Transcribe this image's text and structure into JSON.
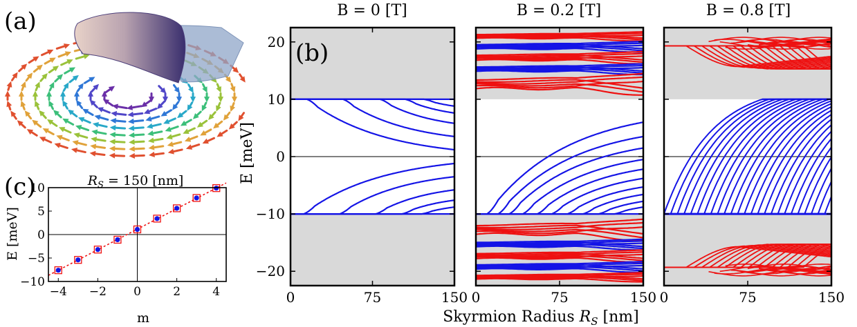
{
  "panel_labels": {
    "a": "(a)",
    "b": "(b)",
    "c": "(c)"
  },
  "colors": {
    "blue": "#1414e6",
    "red": "#ee1111",
    "gap_shade": "#d9d9d9",
    "skirt": "#8fa6c8",
    "dome_dark": "#3a2f6e",
    "dome_light": "#e8d2c8"
  },
  "chart_data": [
    {
      "id": "b1",
      "type": "line",
      "title": "B = 0 [T]",
      "ylabel": "E [meV]",
      "xlim": [
        0,
        150
      ],
      "ylim": [
        -22.5,
        22.5
      ],
      "x_ticks": [
        0,
        75,
        150
      ],
      "y_ticks": [
        -20,
        -10,
        0,
        10,
        20
      ],
      "shaded_ranges": [
        [
          10,
          22.5
        ],
        [
          -22.5,
          -10
        ]
      ],
      "series": [
        {
          "color": "blue",
          "kind": "edge",
          "y": 10
        },
        {
          "color": "blue",
          "kind": "edge",
          "y": -10
        },
        {
          "color": "blue",
          "kind": "down",
          "x0": 15,
          "yend": 1.2
        },
        {
          "color": "blue",
          "kind": "down",
          "x0": 48,
          "yend": 3.5
        },
        {
          "color": "blue",
          "kind": "down",
          "x0": 82,
          "yend": 5.8
        },
        {
          "color": "blue",
          "kind": "down",
          "x0": 105,
          "yend": 7.6
        },
        {
          "color": "blue",
          "kind": "down",
          "x0": 122,
          "yend": 8.8
        },
        {
          "color": "blue",
          "kind": "up",
          "x0": 12,
          "yend": -1.2
        },
        {
          "color": "blue",
          "kind": "up",
          "x0": 45,
          "yend": -3.5
        },
        {
          "color": "blue",
          "kind": "up",
          "x0": 78,
          "yend": -5.8
        },
        {
          "color": "blue",
          "kind": "up",
          "x0": 102,
          "yend": -7.6
        },
        {
          "color": "blue",
          "kind": "up",
          "x0": 120,
          "yend": -8.8
        }
      ]
    },
    {
      "id": "b2",
      "type": "line",
      "title": "B = 0.2 [T]",
      "xlim": [
        0,
        150
      ],
      "ylim": [
        -22.5,
        22.5
      ],
      "x_ticks": [
        0,
        75,
        150
      ],
      "y_ticks": [
        -20,
        -10,
        0,
        10,
        20
      ],
      "shaded_ranges": [
        [
          10,
          22.5
        ],
        [
          -22.5,
          -10
        ]
      ],
      "series": [
        {
          "color": "blue",
          "kind": "edge",
          "y": -10
        },
        {
          "color": "blue",
          "kind": "up",
          "x0": 10,
          "yend": 6
        },
        {
          "color": "blue",
          "kind": "up",
          "x0": 20,
          "yend": 3.5
        },
        {
          "color": "blue",
          "kind": "up",
          "x0": 30,
          "yend": 1.5
        },
        {
          "color": "blue",
          "kind": "up",
          "x0": 42,
          "yend": -0.5
        },
        {
          "color": "blue",
          "kind": "up",
          "x0": 55,
          "yend": -2.2
        },
        {
          "color": "blue",
          "kind": "up",
          "x0": 68,
          "yend": -3.8
        },
        {
          "color": "blue",
          "kind": "up",
          "x0": 82,
          "yend": -5.3
        },
        {
          "color": "blue",
          "kind": "up",
          "x0": 96,
          "yend": -6.6
        },
        {
          "color": "blue",
          "kind": "up",
          "x0": 110,
          "yend": -7.8
        },
        {
          "color": "blue",
          "kind": "up",
          "x0": 124,
          "yend": -8.8
        }
      ],
      "landau_bands": [
        {
          "color": "red",
          "center": 21,
          "spread": 0.6
        },
        {
          "color": "blue",
          "center": 19.2,
          "spread": 0.7
        },
        {
          "color": "red",
          "center": 17.3,
          "spread": 0.8
        },
        {
          "color": "blue",
          "center": 15.3,
          "spread": 0.7
        },
        {
          "color": "red",
          "center": 12.7,
          "spread": 1.4
        },
        {
          "color": "red",
          "center": -12.7,
          "spread": 1.4
        },
        {
          "color": "blue",
          "center": -15.3,
          "spread": 0.7
        },
        {
          "color": "red",
          "center": -17.3,
          "spread": 0.8
        },
        {
          "color": "blue",
          "center": -19.2,
          "spread": 0.7
        },
        {
          "color": "red",
          "center": -21,
          "spread": 0.6
        }
      ]
    },
    {
      "id": "b3",
      "type": "line",
      "title": "B = 0.8 [T]",
      "xlim": [
        0,
        150
      ],
      "ylim": [
        -22.5,
        22.5
      ],
      "x_ticks": [
        0,
        75,
        150
      ],
      "y_ticks": [
        -20,
        -10,
        0,
        10,
        20
      ],
      "shaded_ranges": [
        [
          10,
          22.5
        ],
        [
          -22.5,
          -10
        ]
      ],
      "up_series_start": 0,
      "up_series_step": 6,
      "up_series_count": 25,
      "red_top_count": 16,
      "red_bottom_count": 16
    },
    {
      "id": "c",
      "type": "scatter",
      "title_prefix": "R",
      "title_sub": "S",
      "title_rest": " = 150 [nm]",
      "xlabel": "m",
      "ylabel": "E [meV]",
      "xlim": [
        -4.5,
        4.5
      ],
      "ylim": [
        -10,
        10
      ],
      "x_ticks": [
        -4,
        -2,
        0,
        2,
        4
      ],
      "y_ticks": [
        -10,
        -5,
        0,
        5,
        10
      ],
      "points": [
        {
          "x": -4,
          "y": -7.6
        },
        {
          "x": -3,
          "y": -5.4
        },
        {
          "x": -2,
          "y": -3.2
        },
        {
          "x": -1,
          "y": -1.1
        },
        {
          "x": 0,
          "y": 1.1
        },
        {
          "x": 1,
          "y": 3.4
        },
        {
          "x": 2,
          "y": 5.6
        },
        {
          "x": 3,
          "y": 7.8
        },
        {
          "x": 4,
          "y": 9.9
        }
      ],
      "fit_line": [
        [
          -4.5,
          -8.7
        ],
        [
          4.5,
          11.0
        ]
      ]
    }
  ],
  "shared_xlabel_prefix": "Skyrmion Radius ",
  "shared_xlabel_R": "R",
  "shared_xlabel_sub": "S",
  "shared_xlabel_suffix": " [nm]"
}
